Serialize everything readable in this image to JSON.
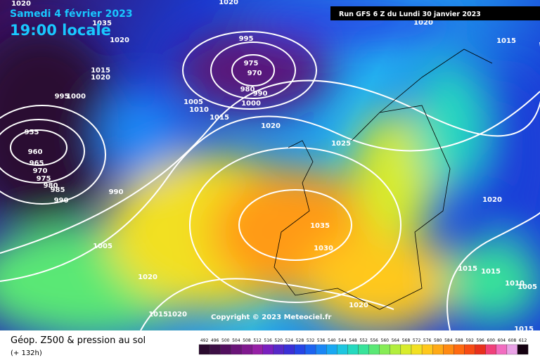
{
  "header": {
    "date": "Samedi 4 février 2023",
    "time": "19:00 locale"
  },
  "run": "Run GFS 6 Z du Lundi 30 janvier 2023",
  "copyright": "Copyright © 2023 Meteociel.fr",
  "footer": {
    "title": "Géop. Z500 & pression au sol",
    "lead": "(+ 132h)"
  },
  "isobar_labels": [
    1020,
    1020,
    1035,
    1020,
    1020,
    1015,
    995,
    975,
    970,
    980,
    990,
    1000,
    1015,
    1020,
    1005,
    1010,
    1015,
    1020,
    1025,
    995,
    1000,
    955,
    960,
    965,
    970,
    975,
    980,
    985,
    990,
    990,
    1005,
    1035,
    1030,
    1020,
    1020,
    1015,
    1015,
    1010,
    1005,
    1015,
    1020,
    1020,
    1015
  ],
  "scale": {
    "values": [
      492,
      496,
      500,
      504,
      508,
      512,
      516,
      520,
      524,
      528,
      532,
      536,
      540,
      544,
      548,
      552,
      556,
      560,
      564,
      568,
      572,
      576,
      580,
      584,
      588,
      592,
      596,
      600,
      604,
      608,
      612
    ],
    "colors": [
      "#2a0a2e",
      "#3c0f45",
      "#520f5e",
      "#6a1478",
      "#80198f",
      "#9620a6",
      "#7a1fbf",
      "#5628c8",
      "#3a2fd6",
      "#2545e6",
      "#1c63f0",
      "#1a86f5",
      "#19a8f2",
      "#1ec6e0",
      "#25d9bf",
      "#38e39a",
      "#5ae875",
      "#86ec55",
      "#b2ee3d",
      "#d8ec2c",
      "#f2e022",
      "#ffc81c",
      "#ffaa16",
      "#ff8a12",
      "#ff6a10",
      "#f74b14",
      "#e8301c",
      "#f0407a",
      "#f26cc0",
      "#e9a2e6",
      "#140010"
    ]
  }
}
